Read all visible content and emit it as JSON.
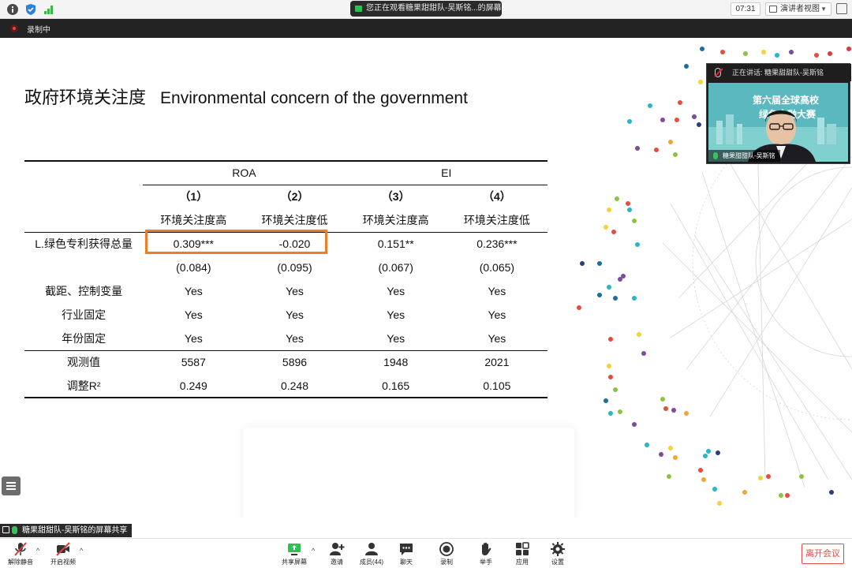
{
  "topbar": {
    "share_notice": "您正在观看糖果甜甜队-吴斯铭...的屏幕",
    "share_more": "⋯",
    "time": "07:31",
    "view_mode": "演讲者视图"
  },
  "recording": {
    "label": "录制中"
  },
  "slide": {
    "title_cn": "政府环境关注度",
    "title_en": "Environmental concern of the government",
    "table": {
      "group_headers": [
        "ROA",
        "EI"
      ],
      "col_numbers": [
        "（1）",
        "（2）",
        "（3）",
        "（4）"
      ],
      "col_labels": [
        "环境关注度高",
        "环境关注度低",
        "环境关注度高",
        "环境关注度低"
      ],
      "rows": [
        {
          "label": "L.绿色专利获得总量",
          "values": [
            "0.309***",
            "-0.020",
            "0.151**",
            "0.236***"
          ]
        },
        {
          "label": "",
          "values": [
            "(0.084)",
            "(0.095)",
            "(0.067)",
            "(0.065)"
          ]
        },
        {
          "label": "截距、控制变量",
          "values": [
            "Yes",
            "Yes",
            "Yes",
            "Yes"
          ]
        },
        {
          "label": "行业固定",
          "values": [
            "Yes",
            "Yes",
            "Yes",
            "Yes"
          ]
        },
        {
          "label": "年份固定",
          "values": [
            "Yes",
            "Yes",
            "Yes",
            "Yes"
          ]
        },
        {
          "label": "观测值",
          "values": [
            "5587",
            "5896",
            "1948",
            "2021"
          ]
        },
        {
          "label": "调整R²",
          "values": [
            "0.249",
            "0.248",
            "0.165",
            "0.105"
          ]
        }
      ]
    },
    "highlight_color": "#ee7d2a"
  },
  "video": {
    "speaking_label": "正在讲话: 糖果甜甜队-吴斯铭",
    "name": "糖果甜甜队-吴斯铭",
    "banner_line1": "第六届全球高校",
    "banner_line2": "绿色金融大赛"
  },
  "share_label": "糖果甜甜队-吴斯铭的屏幕共享",
  "toolbar": {
    "mute": "解除静音",
    "video": "开启视频",
    "share": "共享屏幕",
    "invite": "邀请",
    "members": "成员(44)",
    "chat": "聊天",
    "record": "录制",
    "raise_hand": "举手",
    "apps": "应用",
    "settings": "设置",
    "leave": "离开会议"
  },
  "colors": {
    "accent_orange": "#ee7d2a",
    "leave_red": "#e34a4a",
    "share_green": "#2fbf52"
  }
}
